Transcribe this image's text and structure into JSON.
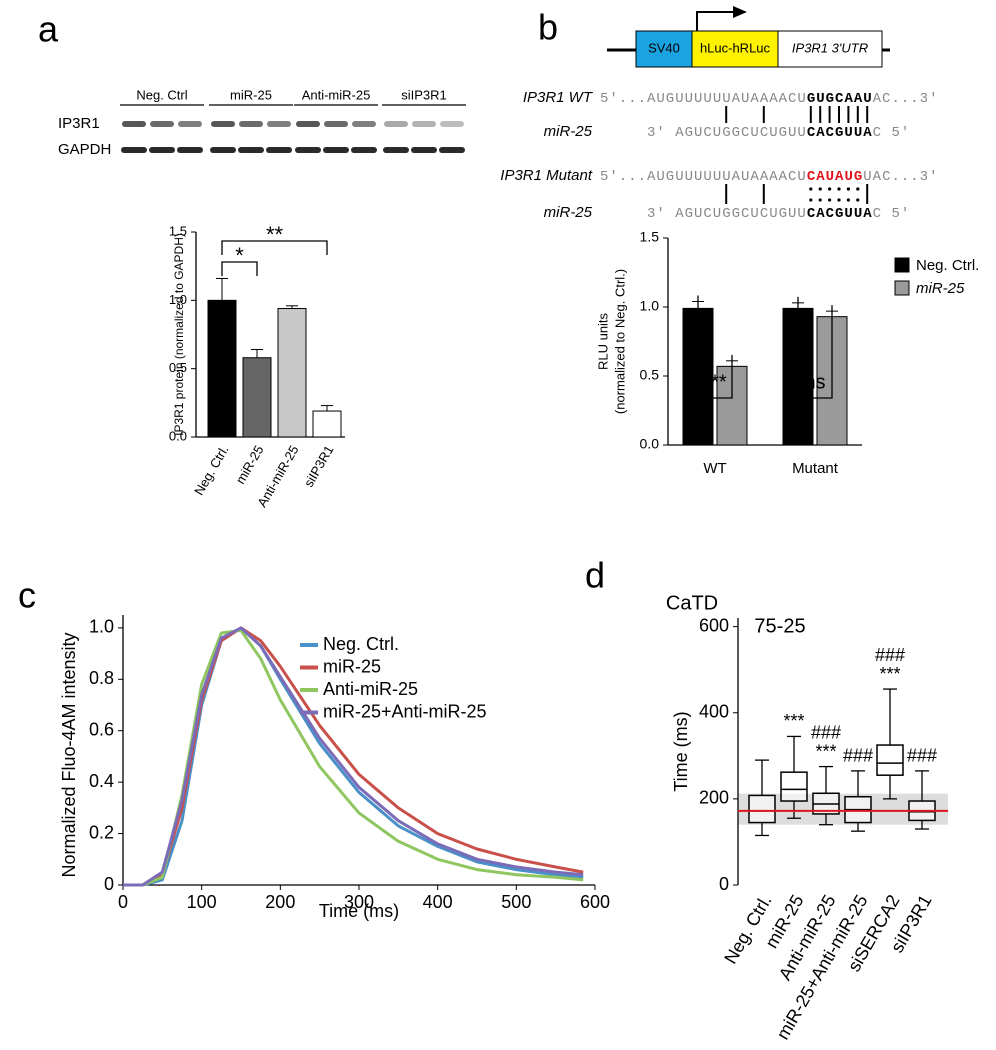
{
  "panel_labels": [
    "a",
    "b",
    "c",
    "d"
  ],
  "blot": {
    "lanes": [
      "Neg. Ctrl",
      "miR-25",
      "Anti-miR-25",
      "siIP3R1"
    ],
    "rows": [
      "IP3R1",
      "GAPDH"
    ]
  },
  "construct": {
    "promoter": "SV40",
    "reporter": "hLuc-hRLuc",
    "utr": "IP3R1 3'UTR"
  },
  "sequences": [
    {
      "label": "IP3R1 WT",
      "parts": [
        "5'...AUGUUUUUUAUAAAACU",
        "GUGCAAU",
        "AC...3'"
      ]
    },
    {
      "label": "miR-25",
      "parts": [
        "3' AGUCUGGCUCUGUU",
        "CACGUUA",
        "C 5'"
      ]
    },
    {
      "label": "IP3R1 Mutant",
      "parts": [
        "5'...AUGUUUUUUAUAAAACU",
        "CAUAUG",
        "UAC...3'"
      ]
    },
    {
      "label": "miR-25",
      "parts": [
        "3' AGUCUGGCUCUGUU",
        "CACGUUA",
        "C 5'"
      ]
    }
  ],
  "chart_data": [
    {
      "type": "bar",
      "ylabel": "IP3R1 protein (normalized to GAPDH)",
      "categories": [
        "Neg. Ctrl.",
        "miR-25",
        "Anti-miR-25",
        "siIP3R1"
      ],
      "values": [
        1.0,
        0.58,
        0.94,
        0.19
      ],
      "errors": [
        0.16,
        0.06,
        0.02,
        0.04
      ],
      "colors": [
        "#000000",
        "#666666",
        "#c8c8c8",
        "#ffffff"
      ],
      "ylim": [
        0,
        1.5
      ],
      "yticks": [
        {
          "value": 0,
          "label": "0.0"
        },
        0.5,
        {
          "value": 1,
          "label": "1.0"
        },
        1.5
      ],
      "annotations": [
        {
          "text": "*",
          "between": [
            "Neg. Ctrl.",
            "miR-25"
          ]
        },
        {
          "text": "**",
          "between": [
            "Neg. Ctrl.",
            "siIP3R1"
          ]
        }
      ]
    },
    {
      "type": "grouped-bar",
      "ylabel": [
        "RLU units",
        "(normalized to Neg. Ctrl.)"
      ],
      "categories": [
        "WT",
        "Mutant"
      ],
      "series": [
        {
          "name": "Neg. Ctrl.",
          "color": "#000000",
          "values": [
            0.99,
            0.99
          ],
          "errors": [
            0.05,
            0.04
          ]
        },
        {
          "name": "miR-25",
          "color": "#9a9a9a",
          "values": [
            0.57,
            0.93
          ],
          "errors": [
            0.04,
            0.04
          ]
        }
      ],
      "ylim": [
        0,
        1.5
      ],
      "yticks": [
        {
          "value": 0,
          "label": "0.0"
        },
        0.5,
        {
          "value": 1,
          "label": "1.0"
        },
        1.5
      ],
      "annotations": [
        {
          "text": "***",
          "category": "WT"
        },
        {
          "text": "ns",
          "category": "Mutant"
        }
      ]
    },
    {
      "type": "line",
      "xlabel": "Time (ms)",
      "ylabel": "Normalized Fluo-4AM intensity",
      "x": [
        0,
        25,
        50,
        75,
        100,
        125,
        150,
        175,
        200,
        250,
        300,
        350,
        400,
        450,
        500,
        550,
        585
      ],
      "series": [
        {
          "name": "Neg. Ctrl.",
          "color": "#4a90c8",
          "values": [
            0,
            0,
            0.02,
            0.25,
            0.7,
            0.95,
            1.0,
            0.93,
            0.8,
            0.55,
            0.36,
            0.23,
            0.15,
            0.09,
            0.06,
            0.04,
            0.03
          ]
        },
        {
          "name": "miR-25",
          "color": "#c9504a",
          "values": [
            0,
            0,
            0.04,
            0.3,
            0.72,
            0.95,
            1.0,
            0.95,
            0.85,
            0.62,
            0.43,
            0.3,
            0.2,
            0.14,
            0.1,
            0.07,
            0.05
          ]
        },
        {
          "name": "Anti-miR-25",
          "color": "#8fc660",
          "values": [
            0,
            0,
            0.03,
            0.35,
            0.78,
            0.98,
            0.99,
            0.88,
            0.72,
            0.46,
            0.28,
            0.17,
            0.1,
            0.06,
            0.04,
            0.03,
            0.02
          ]
        },
        {
          "name": "miR-25+Anti-miR-25",
          "color": "#7b6bb8",
          "values": [
            0,
            0,
            0.05,
            0.33,
            0.74,
            0.96,
            1.0,
            0.93,
            0.81,
            0.57,
            0.38,
            0.25,
            0.16,
            0.1,
            0.07,
            0.05,
            0.04
          ]
        }
      ],
      "xlim": [
        0,
        600
      ],
      "xticks": [
        0,
        100,
        200,
        300,
        400,
        500,
        600
      ],
      "ylim": [
        0,
        1.05
      ],
      "yticks": [
        0,
        0.2,
        0.4,
        0.6,
        0.8,
        {
          "value": 1,
          "label": "1.0"
        }
      ]
    },
    {
      "type": "box",
      "title": "CaTD",
      "subtitle": "75-25",
      "ylabel": "Time (ms)",
      "categories": [
        "Neg. Ctrl.",
        "miR-25",
        "Anti-miR-25",
        "miR-25+Anti-miR-25",
        "siSERCA2",
        "siIP3R1"
      ],
      "boxes": [
        {
          "whislo": 115,
          "q1": 145,
          "median": 172,
          "q3": 208,
          "whishi": 290
        },
        {
          "whislo": 155,
          "q1": 195,
          "median": 222,
          "q3": 262,
          "whishi": 345
        },
        {
          "whislo": 140,
          "q1": 165,
          "median": 188,
          "q3": 213,
          "whishi": 275
        },
        {
          "whislo": 125,
          "q1": 145,
          "median": 175,
          "q3": 205,
          "whishi": 265
        },
        {
          "whislo": 200,
          "q1": 255,
          "median": 283,
          "q3": 325,
          "whishi": 455
        },
        {
          "whislo": 130,
          "q1": 150,
          "median": 170,
          "q3": 195,
          "whishi": 265
        }
      ],
      "significance": [
        [],
        [
          "***"
        ],
        [
          "###",
          "***"
        ],
        [
          "###"
        ],
        [
          "###",
          "***"
        ],
        [
          "###"
        ]
      ],
      "reference_line": 172,
      "reference_band": [
        140,
        212
      ],
      "ylim": [
        0,
        620
      ],
      "yticks": [
        0,
        200,
        400,
        600
      ]
    }
  ]
}
